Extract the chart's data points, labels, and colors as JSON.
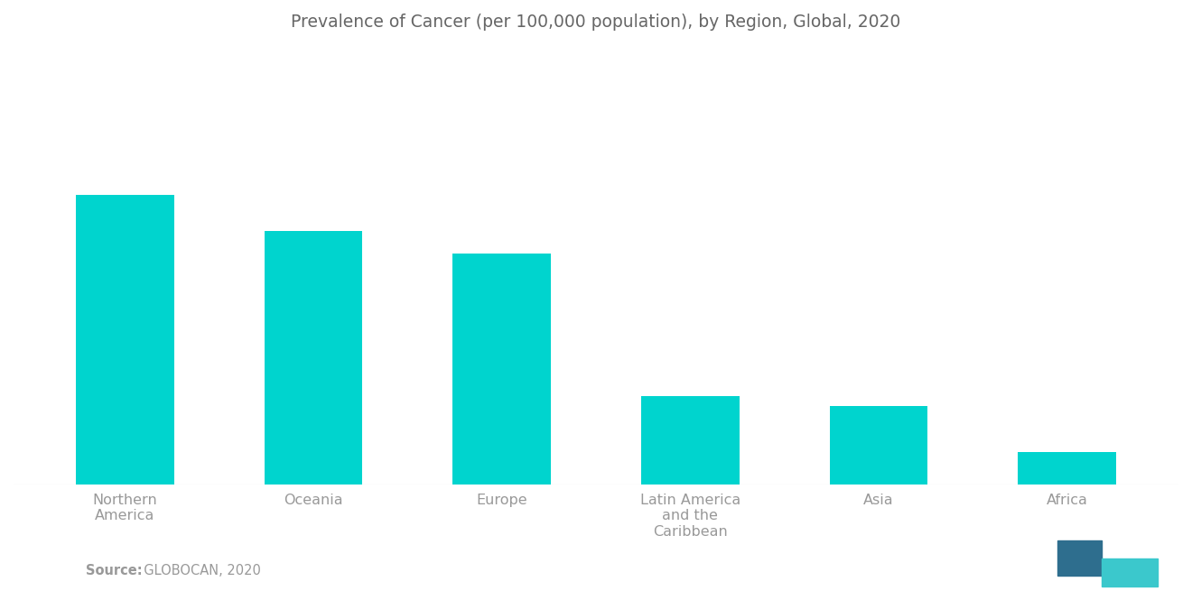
{
  "title": "Prevalence of Cancer (per 100,000 population), by Region, Global, 2020",
  "categories": [
    "Northern\nAmerica",
    "Oceania",
    "Europe",
    "Latin America\nand the\nCaribbean",
    "Asia",
    "Africa"
  ],
  "values": [
    3200,
    2800,
    2550,
    980,
    870,
    360
  ],
  "bar_color": "#00D4CE",
  "background_color": "#ffffff",
  "text_color": "#999999",
  "title_color": "#666666",
  "source_label_bold": "Source:",
  "source_label_rest": "  GLOBOCAN, 2020",
  "ylim": [
    0,
    4800
  ],
  "title_fontsize": 13.5,
  "label_fontsize": 11.5,
  "source_fontsize": 10.5,
  "bar_width": 0.52,
  "logo_color1": "#2e6e8e",
  "logo_color2": "#3bc8cc"
}
